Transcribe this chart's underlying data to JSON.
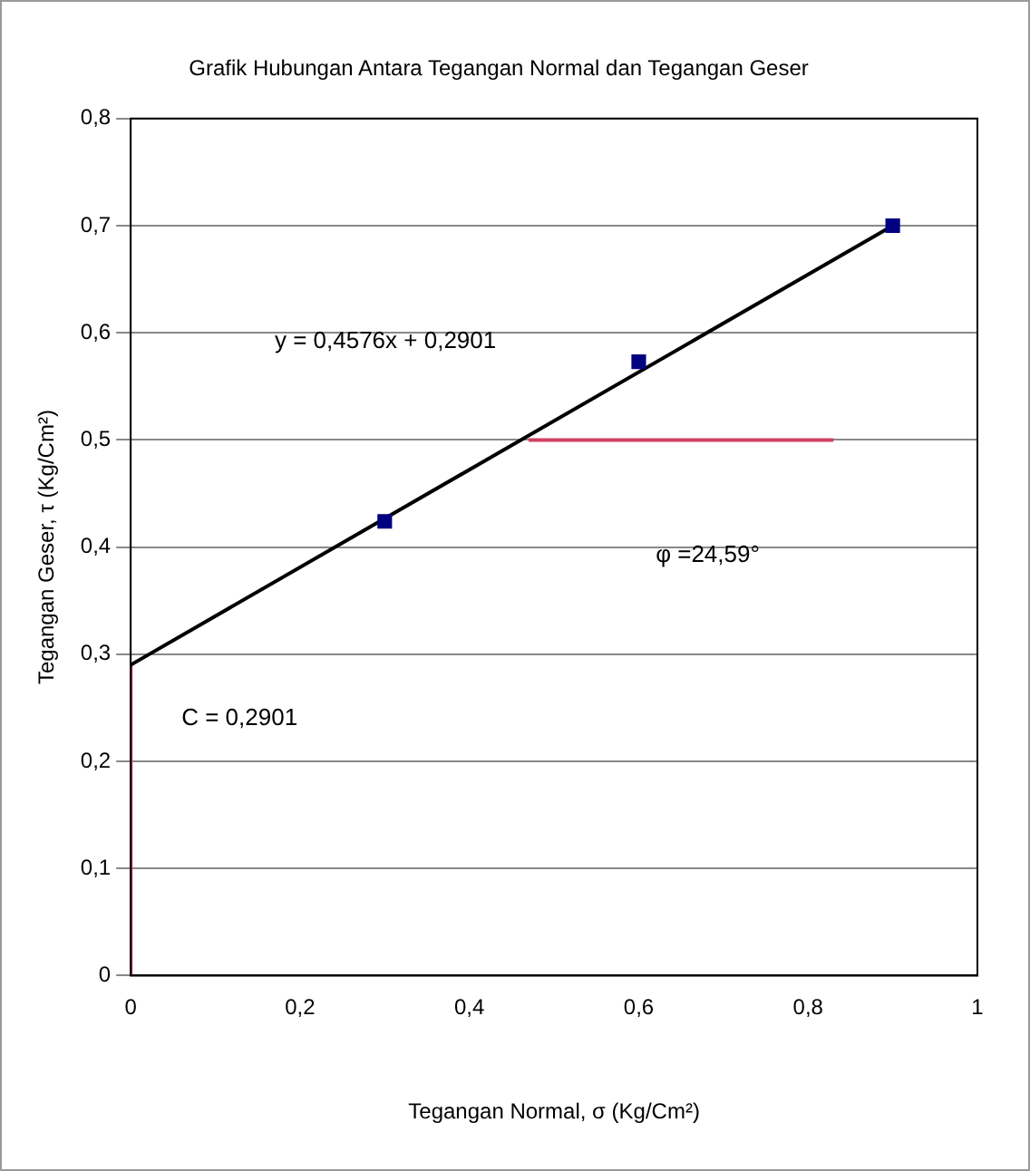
{
  "chart_data": {
    "type": "scatter",
    "title": "Grafik Hubungan Antara Tegangan Normal dan Tegangan Geser",
    "xlabel": "Tegangan Normal, σ (Kg/Cm²)",
    "ylabel": "Tegangan Geser, τ (Kg/Cm²)",
    "series": [
      {
        "color": "#000080",
        "x": [
          0.3,
          0.6,
          0.9
        ],
        "values": [
          0.424,
          0.573,
          0.7
        ],
        "marker": "square"
      },
      {
        "type": "line",
        "color": "#000000",
        "x": [
          0,
          0.9
        ],
        "values": [
          0.29,
          0.7
        ]
      },
      {
        "type": "line",
        "color": "#d04060",
        "x": [
          0.47,
          0.83
        ],
        "values": [
          0.5,
          0.5
        ]
      },
      {
        "type": "line",
        "color": "#c03050",
        "x": [
          0,
          0
        ],
        "values": [
          0,
          0.29
        ]
      }
    ],
    "xlim": [
      0,
      1
    ],
    "xticks": [
      {
        "value": 0,
        "label": "0"
      },
      {
        "value": 0.2,
        "label": "0,2"
      },
      {
        "value": 0.4,
        "label": "0,4"
      },
      {
        "value": 0.6,
        "label": "0,6"
      },
      {
        "value": 0.8,
        "label": "0,8"
      },
      {
        "value": 1,
        "label": "1"
      }
    ],
    "ylim": [
      0,
      0.8
    ],
    "yticks": [
      {
        "value": 0,
        "label": "0"
      },
      {
        "value": 0.1,
        "label": "0,1"
      },
      {
        "value": 0.2,
        "label": "0,2"
      },
      {
        "value": 0.3,
        "label": "0,3"
      },
      {
        "value": 0.4,
        "label": "0,4"
      },
      {
        "value": 0.5,
        "label": "0,5"
      },
      {
        "value": 0.6,
        "label": "0,6"
      },
      {
        "value": 0.7,
        "label": "0,7"
      },
      {
        "value": 0.8,
        "label": "0,8"
      }
    ],
    "grid": "y",
    "legend": false,
    "annotations": [
      "y = 0,4576x + 0,2901",
      "φ =24,59°",
      "C = 0,2901"
    ]
  }
}
